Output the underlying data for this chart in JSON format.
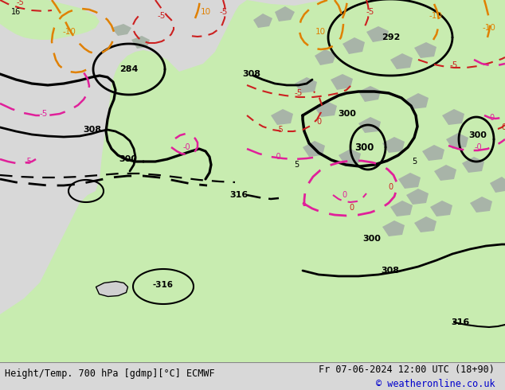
{
  "title_left": "Height/Temp. 700 hPa [gdmp][°C] ECMWF",
  "title_right": "Fr 07-06-2024 12:00 UTC (18+90)",
  "copyright": "© weatheronline.co.uk",
  "bg_color": "#d8d8d8",
  "ocean_color": "#d0d0d0",
  "land_color": "#c8ecb0",
  "gray_color": "#a8b4a8",
  "bottom_bar_color": "#ffffff",
  "title_color": "#000000",
  "copyright_color": "#0000cc",
  "black_line_color": "#000000",
  "orange_color": "#e08000",
  "red_color": "#cc2020",
  "pink_color": "#e0209a"
}
